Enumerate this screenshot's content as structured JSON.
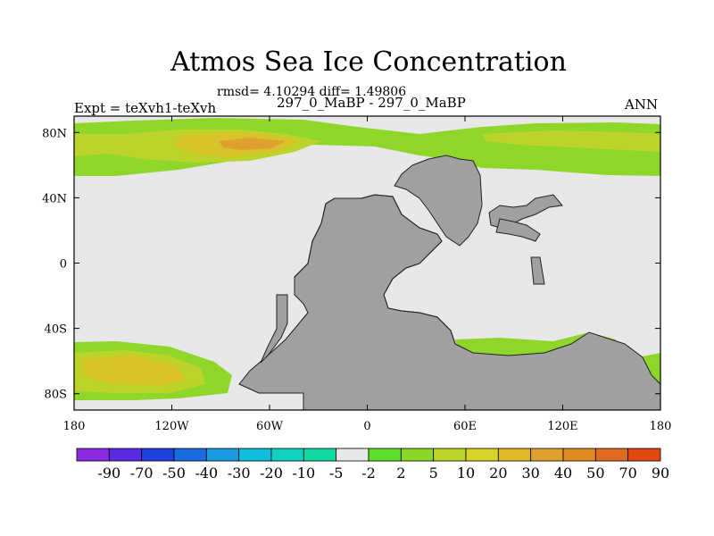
{
  "figure": {
    "title": "Atmos Sea Ice Concentration",
    "stats": "rmsd= 4.10294 diff= 1.49806",
    "left_label": "Expt = teXvh1-teXvh",
    "center_label": "297_0_MaBP - 297_0_MaBP",
    "right_label": "ANN"
  },
  "map": {
    "lon_ticks": [
      "180",
      "120W",
      "60W",
      "0",
      "60E",
      "120E",
      "180"
    ],
    "lat_ticks": [
      "80N",
      "40N",
      "0",
      "40S",
      "80S"
    ],
    "colors": {
      "background": "#e8e8e8",
      "land": "#a0a0a0",
      "field_low": "#8fd62a",
      "field_mid": "#bcd42a",
      "field_high": "#d8c32a",
      "field_peak": "#e0a030"
    }
  },
  "colorbar": {
    "labels": [
      "-90",
      "-70",
      "-50",
      "-40",
      "-30",
      "-20",
      "-10",
      "-5",
      "-2",
      "2",
      "5",
      "10",
      "20",
      "30",
      "40",
      "50",
      "70",
      "90"
    ],
    "colors": [
      "#8a2be2",
      "#5a2be2",
      "#2040e0",
      "#1a6ae0",
      "#1a9ae0",
      "#10bede",
      "#10d0c0",
      "#10d8a0",
      "#e8e8e8",
      "#5ce02a",
      "#8cd62a",
      "#bcd42a",
      "#d8d22a",
      "#e0b82a",
      "#e0a030",
      "#e08a20",
      "#e06a20",
      "#e04a10"
    ]
  }
}
